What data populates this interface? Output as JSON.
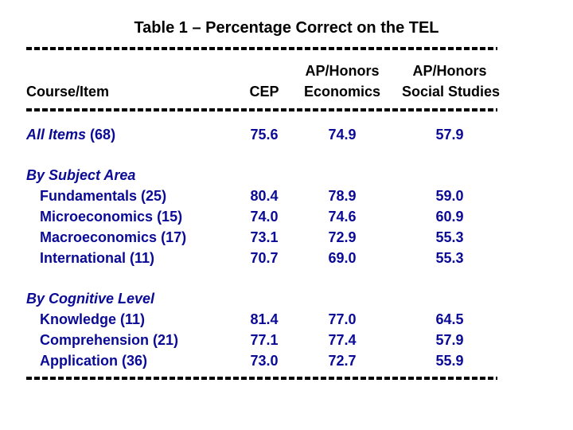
{
  "title": "Table 1 – Percentage Correct on the TEL",
  "colors": {
    "heading_text": "#000000",
    "data_text": "#0a0a96",
    "rule": "#000000",
    "background": "#ffffff"
  },
  "table": {
    "header": {
      "course_item": "Course/Item",
      "cep": "CEP",
      "ap_honors_econ_line1": "AP/Honors",
      "ap_honors_econ_line2": "Economics",
      "ap_honors_ss_line1": "AP/Honors",
      "ap_honors_ss_line2": "Social Studies"
    },
    "rows": [
      {
        "type": "data",
        "label": "All Items",
        "suffix": "(68)",
        "italic_label": true,
        "indent": false,
        "values": [
          "75.6",
          "74.9",
          "57.9"
        ]
      },
      {
        "type": "spacer"
      },
      {
        "type": "section",
        "label": "By Subject Area"
      },
      {
        "type": "data",
        "label": "Fundamentals",
        "suffix": "(25)",
        "italic_label": false,
        "indent": true,
        "values": [
          "80.4",
          "78.9",
          "59.0"
        ]
      },
      {
        "type": "data",
        "label": "Microeconomics",
        "suffix": "(15)",
        "italic_label": false,
        "indent": true,
        "values": [
          "74.0",
          "74.6",
          "60.9"
        ]
      },
      {
        "type": "data",
        "label": "Macroeconomics",
        "suffix": "(17)",
        "italic_label": false,
        "indent": true,
        "values": [
          "73.1",
          "72.9",
          "55.3"
        ]
      },
      {
        "type": "data",
        "label": "International",
        "suffix": "(11)",
        "italic_label": false,
        "indent": true,
        "values": [
          "70.7",
          "69.0",
          "55.3"
        ]
      },
      {
        "type": "spacer"
      },
      {
        "type": "section",
        "label": "By Cognitive Level"
      },
      {
        "type": "data",
        "label": "Knowledge",
        "suffix": "(11)",
        "italic_label": false,
        "indent": true,
        "values": [
          "81.4",
          "77.0",
          "64.5"
        ]
      },
      {
        "type": "data",
        "label": "Comprehension",
        "suffix": "(21)",
        "italic_label": false,
        "indent": true,
        "values": [
          "77.1",
          "77.4",
          "57.9"
        ]
      },
      {
        "type": "data",
        "label": "Application",
        "suffix": "(36)",
        "italic_label": false,
        "indent": true,
        "values": [
          "73.0",
          "72.7",
          "55.9"
        ]
      }
    ]
  }
}
